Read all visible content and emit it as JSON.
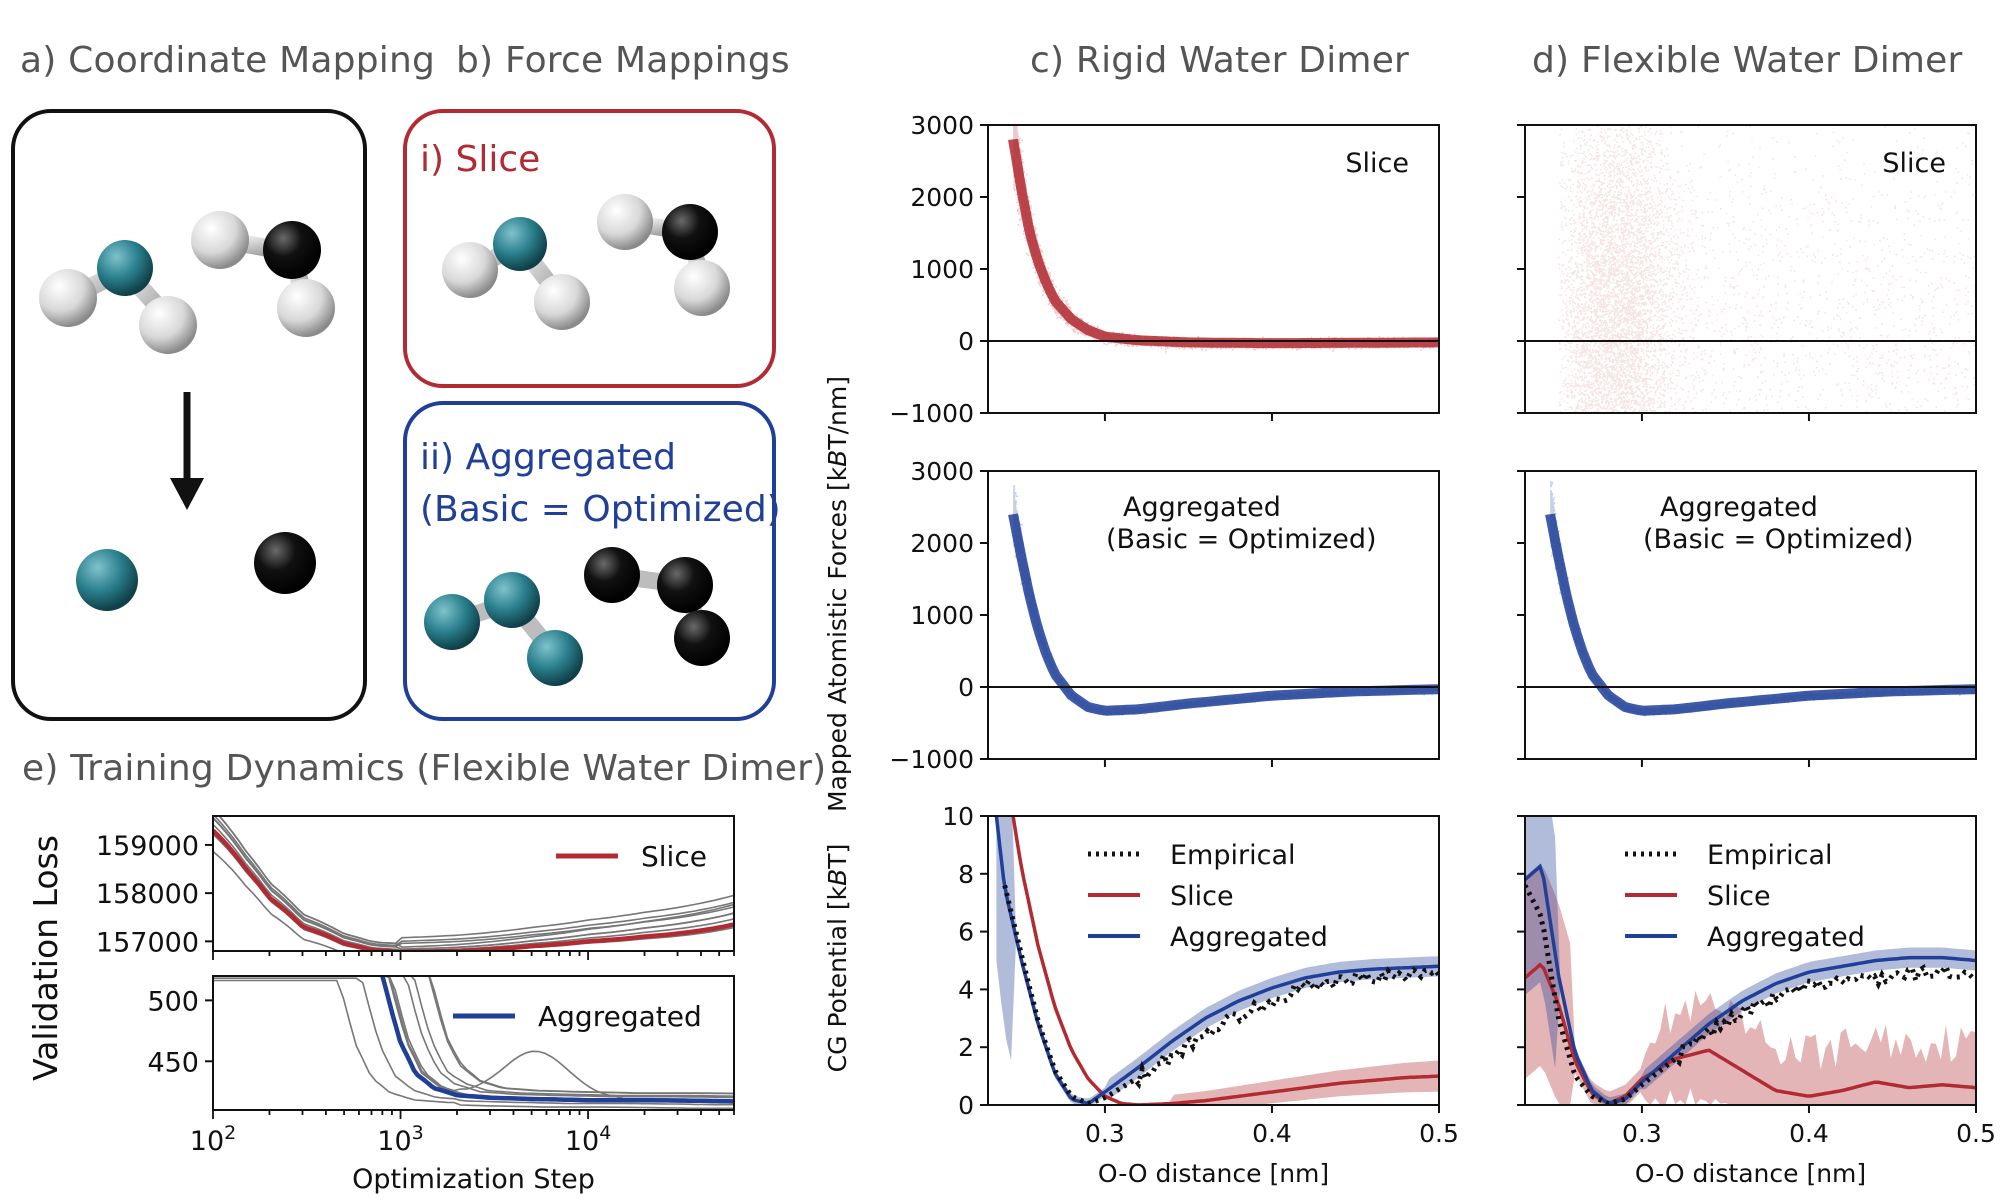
{
  "titles": {
    "a": "a) Coordinate Mapping",
    "b": "b) Force Mappings",
    "c": "c) Rigid Water Dimer",
    "d": "d) Flexible Water Dimer",
    "e": "e) Training Dynamics (Flexible Water Dimer)"
  },
  "force_boxes": {
    "slice_label": "i) Slice",
    "agg_label_1": "ii) Aggregated",
    "agg_label_2": "(Basic = Optimized)"
  },
  "colors": {
    "slice": "#b22b32",
    "aggregated": "#1f3f99",
    "empirical": "#111111",
    "teal": "#2a7f8d",
    "grey_runs": "#777777"
  },
  "chart_data": [
    {
      "id": "c-top",
      "type": "scatter",
      "ylabel": "Mapped Atomistic Forces [kBT/nm]",
      "annotation": "Slice",
      "xlim": [
        0.23,
        0.5
      ],
      "ylim": [
        -1000,
        3000
      ],
      "yticks": [
        "3000",
        "2000",
        "1000",
        "0",
        "−1000"
      ],
      "series": [
        {
          "name": "Slice",
          "color": "#b22b32",
          "x": [
            0.245,
            0.25,
            0.255,
            0.26,
            0.265,
            0.27,
            0.28,
            0.29,
            0.3,
            0.32,
            0.35,
            0.4,
            0.45,
            0.5
          ],
          "y": [
            2800,
            2100,
            1500,
            1100,
            800,
            560,
            300,
            150,
            60,
            10,
            -20,
            -30,
            -25,
            -20
          ]
        }
      ]
    },
    {
      "id": "d-top",
      "type": "scatter",
      "annotation": "Slice",
      "xlim": [
        0.23,
        0.5
      ],
      "ylim": [
        -1000,
        3000
      ],
      "series": [
        {
          "name": "Slice",
          "color": "#b22b32",
          "x": [
            0.25,
            0.27,
            0.29,
            0.31,
            0.35,
            0.4,
            0.45,
            0.5
          ],
          "y": [
            0,
            0,
            0,
            0,
            0,
            0,
            0,
            0
          ]
        }
      ]
    },
    {
      "id": "c-mid",
      "type": "scatter",
      "annotation_1": "Aggregated",
      "annotation_2": "(Basic = Optimized)",
      "xlim": [
        0.23,
        0.5
      ],
      "ylim": [
        -1000,
        3000
      ],
      "yticks": [
        "3000",
        "2000",
        "1000",
        "0",
        "−1000"
      ],
      "series": [
        {
          "name": "Aggregated",
          "color": "#1f3f99",
          "x": [
            0.245,
            0.25,
            0.255,
            0.26,
            0.265,
            0.27,
            0.28,
            0.29,
            0.3,
            0.32,
            0.35,
            0.4,
            0.45,
            0.5
          ],
          "y": [
            2400,
            1800,
            1250,
            800,
            450,
            180,
            -120,
            -280,
            -330,
            -310,
            -230,
            -120,
            -60,
            -30
          ]
        }
      ]
    },
    {
      "id": "d-mid",
      "type": "scatter",
      "annotation_1": "Aggregated",
      "annotation_2": "(Basic = Optimized)",
      "xlim": [
        0.23,
        0.5
      ],
      "ylim": [
        -1000,
        3000
      ],
      "series": [
        {
          "name": "Aggregated",
          "color": "#1f3f99",
          "x": [
            0.245,
            0.25,
            0.255,
            0.26,
            0.265,
            0.27,
            0.28,
            0.29,
            0.3,
            0.32,
            0.35,
            0.4,
            0.45,
            0.5
          ],
          "y": [
            2400,
            1800,
            1250,
            800,
            450,
            180,
            -120,
            -280,
            -330,
            -310,
            -230,
            -120,
            -60,
            -30
          ]
        }
      ]
    },
    {
      "id": "c-bot",
      "type": "line",
      "ylabel": "CG Potential [kBT]",
      "xlabel": "O-O distance [nm]",
      "xlim": [
        0.23,
        0.5
      ],
      "ylim": [
        0,
        10
      ],
      "xticks": [
        "0.3",
        "0.4",
        "0.5"
      ],
      "yticks": [
        "10",
        "8",
        "6",
        "4",
        "2",
        "0"
      ],
      "legend": [
        "Empirical",
        "Slice",
        "Aggregated"
      ],
      "series": [
        {
          "name": "Empirical",
          "color": "#111111",
          "x": [
            0.24,
            0.25,
            0.26,
            0.27,
            0.28,
            0.29,
            0.3,
            0.32,
            0.34,
            0.36,
            0.38,
            0.4,
            0.42,
            0.44,
            0.46,
            0.48,
            0.5
          ],
          "y": [
            7.6,
            5.2,
            2.9,
            1.2,
            0.3,
            0.05,
            0.25,
            0.95,
            1.7,
            2.5,
            3.1,
            3.6,
            4.1,
            4.3,
            4.4,
            4.5,
            4.5
          ]
        },
        {
          "name": "Slice",
          "color": "#b22b32",
          "x": [
            0.245,
            0.25,
            0.26,
            0.27,
            0.28,
            0.29,
            0.3,
            0.31,
            0.32,
            0.34,
            0.36,
            0.38,
            0.4,
            0.42,
            0.44,
            0.46,
            0.48,
            0.5
          ],
          "y": [
            10,
            8.2,
            5.5,
            3.4,
            1.9,
            0.9,
            0.3,
            0.05,
            0.0,
            0.05,
            0.15,
            0.3,
            0.45,
            0.6,
            0.75,
            0.85,
            0.95,
            1.0
          ]
        },
        {
          "name": "Aggregated",
          "color": "#1f3f99",
          "x": [
            0.235,
            0.24,
            0.25,
            0.26,
            0.27,
            0.28,
            0.29,
            0.3,
            0.32,
            0.34,
            0.36,
            0.38,
            0.4,
            0.42,
            0.44,
            0.46,
            0.48,
            0.5
          ],
          "y": [
            10,
            7.5,
            5.0,
            2.8,
            1.1,
            0.2,
            0.05,
            0.45,
            1.3,
            2.2,
            3.0,
            3.6,
            4.05,
            4.4,
            4.6,
            4.7,
            4.75,
            4.8
          ]
        }
      ]
    },
    {
      "id": "d-bot",
      "type": "line",
      "xlabel": "O-O distance [nm]",
      "xlim": [
        0.23,
        0.5
      ],
      "ylim": [
        0,
        10
      ],
      "xticks": [
        "0.3",
        "0.4",
        "0.5"
      ],
      "legend": [
        "Empirical",
        "Slice",
        "Aggregated"
      ],
      "series": [
        {
          "name": "Empirical",
          "color": "#111111",
          "x": [
            0.23,
            0.24,
            0.25,
            0.26,
            0.27,
            0.28,
            0.29,
            0.3,
            0.32,
            0.34,
            0.36,
            0.38,
            0.4,
            0.42,
            0.44,
            0.46,
            0.48,
            0.5
          ],
          "y": [
            7.6,
            6.5,
            3.0,
            1.0,
            0.3,
            0.05,
            0.2,
            0.7,
            1.6,
            2.5,
            3.2,
            3.7,
            4.1,
            4.3,
            4.4,
            4.5,
            4.6,
            4.5
          ]
        },
        {
          "name": "Slice",
          "color": "#b22b32",
          "x": [
            0.23,
            0.24,
            0.25,
            0.26,
            0.27,
            0.28,
            0.29,
            0.3,
            0.32,
            0.34,
            0.36,
            0.38,
            0.4,
            0.42,
            0.44,
            0.46,
            0.48,
            0.5
          ],
          "y": [
            4.4,
            4.9,
            3.5,
            1.5,
            0.4,
            0.05,
            0.3,
            0.9,
            1.6,
            1.9,
            1.2,
            0.5,
            0.3,
            0.5,
            0.8,
            0.6,
            0.7,
            0.6
          ]
        },
        {
          "name": "Aggregated",
          "color": "#1f3f99",
          "x": [
            0.23,
            0.24,
            0.25,
            0.26,
            0.27,
            0.28,
            0.29,
            0.3,
            0.32,
            0.34,
            0.36,
            0.38,
            0.4,
            0.42,
            0.44,
            0.46,
            0.48,
            0.5
          ],
          "y": [
            7.8,
            8.3,
            4.5,
            1.8,
            0.5,
            0.05,
            0.2,
            0.8,
            1.8,
            2.8,
            3.6,
            4.2,
            4.6,
            4.8,
            5.0,
            5.1,
            5.1,
            5.0
          ]
        }
      ]
    },
    {
      "id": "e-top",
      "type": "line",
      "ylabel": "Validation Loss",
      "xscale": "log",
      "xlim": [
        100,
        60000
      ],
      "ylim": [
        156800,
        159600
      ],
      "yticks": [
        "159000",
        "158000",
        "157000"
      ],
      "legend": [
        "Slice"
      ],
      "series": [
        {
          "name": "Slice",
          "color": "#b22b32",
          "x": [
            100,
            150,
            200,
            300,
            500,
            700,
            1000,
            2000,
            5000,
            10000,
            20000,
            60000
          ],
          "y": [
            159300,
            158500,
            157900,
            157300,
            156950,
            156820,
            156780,
            156800,
            156900,
            157000,
            157100,
            157350
          ]
        }
      ]
    },
    {
      "id": "e-bottom",
      "type": "line",
      "xlabel": "Optimization Step",
      "xscale": "log",
      "xlim": [
        100,
        60000
      ],
      "ylim": [
        410,
        520
      ],
      "xticks": [
        "10^2",
        "10^3",
        "10^4"
      ],
      "yticks": [
        "500",
        "450"
      ],
      "legend": [
        "Aggregated"
      ],
      "series": [
        {
          "name": "Aggregated",
          "color": "#1f3f99",
          "x": [
            800,
            900,
            1000,
            1200,
            1500,
            2000,
            3000,
            5000,
            10000,
            20000,
            60000
          ],
          "y": [
            520,
            490,
            465,
            440,
            428,
            422,
            420,
            419,
            418,
            418,
            417
          ]
        }
      ]
    }
  ]
}
